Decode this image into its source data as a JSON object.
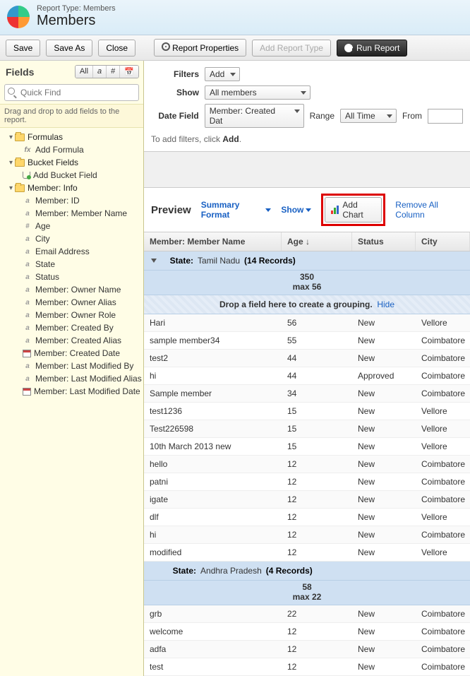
{
  "header": {
    "report_type_label": "Report Type: Members",
    "title": "Members"
  },
  "toolbar": {
    "save": "Save",
    "saveas": "Save As",
    "close": "Close",
    "props": "Report Properties",
    "addtype": "Add Report Type",
    "run": "Run Report"
  },
  "fields": {
    "label": "Fields",
    "toggles": [
      "All",
      "a",
      "#",
      "📅"
    ],
    "quickfind_placeholder": "Quick Find",
    "hint": "Drag and drop to add fields to the report.",
    "folders": [
      {
        "name": "Formulas",
        "children": [
          {
            "icon": "fx",
            "label": "Add Formula"
          }
        ]
      },
      {
        "name": "Bucket Fields",
        "children": [
          {
            "icon": "bucket",
            "label": "Add Bucket Field"
          }
        ]
      },
      {
        "name": "Member: Info",
        "children": [
          {
            "icon": "a",
            "label": "Member: ID"
          },
          {
            "icon": "a",
            "label": "Member: Member Name"
          },
          {
            "icon": "hash",
            "label": "Age"
          },
          {
            "icon": "a",
            "label": "City"
          },
          {
            "icon": "a",
            "label": "Email Address"
          },
          {
            "icon": "a",
            "label": "State"
          },
          {
            "icon": "a",
            "label": "Status"
          },
          {
            "icon": "a",
            "label": "Member: Owner Name"
          },
          {
            "icon": "a",
            "label": "Member: Owner Alias"
          },
          {
            "icon": "a",
            "label": "Member: Owner Role"
          },
          {
            "icon": "a",
            "label": "Member: Created By"
          },
          {
            "icon": "a",
            "label": "Member: Created Alias"
          },
          {
            "icon": "cal",
            "label": "Member: Created Date"
          },
          {
            "icon": "a",
            "label": "Member: Last Modified By"
          },
          {
            "icon": "a",
            "label": "Member: Last Modified Alias"
          },
          {
            "icon": "cal",
            "label": "Member: Last Modified Date"
          }
        ]
      }
    ]
  },
  "filters": {
    "filters_label": "Filters",
    "add": "Add",
    "show_label": "Show",
    "show_value": "All members",
    "datefield_label": "Date Field",
    "datefield_value": "Member: Created Dat",
    "range_label": "Range",
    "range_value": "All Time",
    "from_label": "From",
    "hint": "To add filters, click ",
    "hint_bold": "Add"
  },
  "preview": {
    "title": "Preview",
    "summary": "Summary Format",
    "show": "Show",
    "addchart": "Add Chart",
    "remove": "Remove All Column",
    "cols": {
      "c1": "Member: Member Name",
      "c2": "Age ↓",
      "c3": "Status",
      "c4": "City"
    },
    "dropzone": "Drop a field here to create a grouping.",
    "hide": "Hide",
    "groups": [
      {
        "state": "Tamil Nadu",
        "count": "14 Records",
        "sum": "350",
        "max": "max 56",
        "rows": [
          {
            "n": "Hari",
            "a": "56",
            "s": "New",
            "c": "Vellore"
          },
          {
            "n": "sample member34",
            "a": "55",
            "s": "New",
            "c": "Coimbatore"
          },
          {
            "n": "test2",
            "a": "44",
            "s": "New",
            "c": "Coimbatore"
          },
          {
            "n": "hi",
            "a": "44",
            "s": "Approved",
            "c": "Coimbatore"
          },
          {
            "n": "Sample member",
            "a": "34",
            "s": "New",
            "c": "Coimbatore"
          },
          {
            "n": "test1236",
            "a": "15",
            "s": "New",
            "c": "Vellore"
          },
          {
            "n": "Test226598",
            "a": "15",
            "s": "New",
            "c": "Vellore"
          },
          {
            "n": "10th March 2013 new",
            "a": "15",
            "s": "New",
            "c": "Vellore"
          },
          {
            "n": "hello",
            "a": "12",
            "s": "New",
            "c": "Coimbatore"
          },
          {
            "n": "patni",
            "a": "12",
            "s": "New",
            "c": "Coimbatore"
          },
          {
            "n": "igate",
            "a": "12",
            "s": "New",
            "c": "Coimbatore"
          },
          {
            "n": "dlf",
            "a": "12",
            "s": "New",
            "c": "Vellore"
          },
          {
            "n": "hi",
            "a": "12",
            "s": "New",
            "c": "Coimbatore"
          },
          {
            "n": "modified",
            "a": "12",
            "s": "New",
            "c": "Vellore"
          }
        ]
      },
      {
        "state": "Andhra Pradesh",
        "count": "4 Records",
        "sum": "58",
        "max": "max 22",
        "rows": [
          {
            "n": "grb",
            "a": "22",
            "s": "New",
            "c": "Coimbatore"
          },
          {
            "n": "welcome",
            "a": "12",
            "s": "New",
            "c": "Coimbatore"
          },
          {
            "n": "adfa",
            "a": "12",
            "s": "New",
            "c": "Coimbatore"
          },
          {
            "n": "test",
            "a": "12",
            "s": "New",
            "c": "Coimbatore"
          }
        ]
      }
    ]
  },
  "state_label": "State:"
}
